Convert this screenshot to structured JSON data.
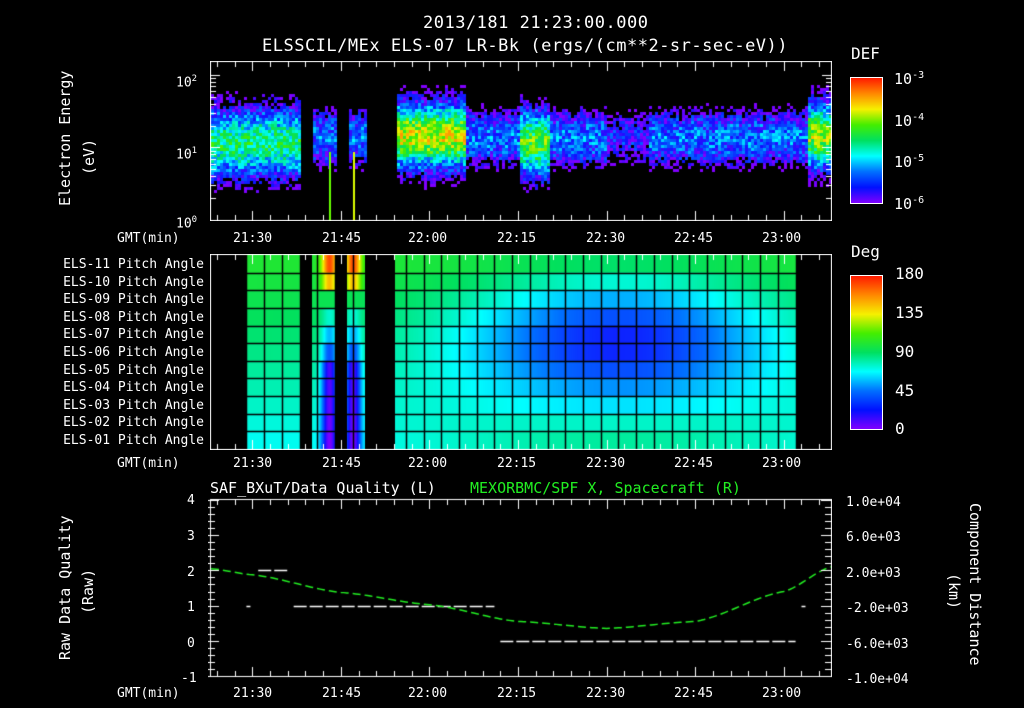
{
  "header": {
    "timestamp": "2013/181 21:23:00.000",
    "product": "ELSSCIL/MEx ELS-07 LR-Bk  (ergs/(cm**2-sr-sec-eV))"
  },
  "time_axis": {
    "label": "GMT(min)",
    "ticks": [
      "21:30",
      "21:45",
      "22:00",
      "22:15",
      "22:30",
      "22:45",
      "23:00"
    ]
  },
  "panel1": {
    "ylabel_line1": "Electron Energy",
    "ylabel_line2": "(eV)",
    "yticks": [
      {
        "base": "10",
        "exp": "2"
      },
      {
        "base": "10",
        "exp": "1"
      },
      {
        "base": "10",
        "exp": "0"
      }
    ],
    "colorbar": {
      "title": "DEF",
      "ticks": [
        {
          "base": "10",
          "exp": "-3"
        },
        {
          "base": "10",
          "exp": "-4"
        },
        {
          "base": "10",
          "exp": "-5"
        },
        {
          "base": "10",
          "exp": "-6"
        }
      ]
    }
  },
  "panel2": {
    "rows": [
      "ELS-11 Pitch Angle",
      "ELS-10 Pitch Angle",
      "ELS-09 Pitch Angle",
      "ELS-08 Pitch Angle",
      "ELS-07 Pitch Angle",
      "ELS-06 Pitch Angle",
      "ELS-05 Pitch Angle",
      "ELS-04 Pitch Angle",
      "ELS-03 Pitch Angle",
      "ELS-02 Pitch Angle",
      "ELS-01 Pitch Angle"
    ],
    "colorbar": {
      "title": "Deg",
      "ticks": [
        "180",
        "135",
        "90",
        "45",
        "0"
      ]
    }
  },
  "panel3": {
    "left_title": "SAF_BXuT/Data Quality (L)",
    "right_title": "MEXORBMC/SPF X, Spacecraft (R)",
    "ylabel_left_line1": "Raw Data Quality",
    "ylabel_left_line2": "(Raw)",
    "ylabel_right_line1": "Component Distance",
    "ylabel_right_line2": "(km)",
    "yticks_left": [
      "4",
      "3",
      "2",
      "1",
      "0",
      "-1"
    ],
    "yticks_right": [
      "1.0e+04",
      "6.0e+03",
      "2.0e+03",
      "-2.0e+03",
      "-6.0e+03",
      "-1.0e+04"
    ]
  },
  "colors": {
    "background": "#000000",
    "axes": "#ffffff",
    "spacecraft_trace": "#22ee22",
    "quality_trace": "#ffffff"
  },
  "chart_data": [
    {
      "type": "heatmap",
      "title": "ELSSCIL/MEx ELS-07 LR-Bk (ergs/(cm**2-sr-sec-eV))",
      "xlabel": "GMT(min)",
      "ylabel": "Electron Energy (eV)",
      "yscale": "log",
      "ylim": [
        1,
        150
      ],
      "xlim": [
        "21:23",
        "23:08"
      ],
      "colorbar": {
        "label": "DEF",
        "scale": "log",
        "range": [
          1e-06,
          0.001
        ]
      },
      "data_gaps": [
        [
          "21:38",
          "21:40"
        ],
        [
          "21:44",
          "21:46"
        ],
        [
          "21:49",
          "21:54"
        ]
      ],
      "features": [
        {
          "time_range": [
            "21:23",
            "21:38"
          ],
          "peak_energy_eV": 12,
          "peak_def": 3e-05
        },
        {
          "time_range": [
            "21:55",
            "22:05"
          ],
          "peak_energy_eV": 15,
          "peak_def": 0.00015
        },
        {
          "time_range": [
            "22:16",
            "22:19"
          ],
          "peak_energy_eV": 12,
          "peak_def": 6e-05
        },
        {
          "time_range": [
            "23:05",
            "23:08"
          ],
          "peak_energy_eV": 15,
          "peak_def": 0.0001
        }
      ]
    },
    {
      "type": "heatmap",
      "title": "ELS pitch angles",
      "xlabel": "GMT(min)",
      "categories": [
        "ELS-11",
        "ELS-10",
        "ELS-09",
        "ELS-08",
        "ELS-07",
        "ELS-06",
        "ELS-05",
        "ELS-04",
        "ELS-03",
        "ELS-02",
        "ELS-01"
      ],
      "colorbar": {
        "label": "Deg",
        "range": [
          0,
          180
        ],
        "ticks": [
          0,
          45,
          90,
          135,
          180
        ]
      },
      "data_range": [
        "21:29",
        "23:02"
      ],
      "data_gaps": [
        [
          "21:23",
          "21:29"
        ],
        [
          "21:38",
          "21:40"
        ],
        [
          "21:44",
          "21:46"
        ],
        [
          "21:49",
          "21:54"
        ],
        [
          "23:02",
          "23:08"
        ]
      ],
      "description": "Pitch angle ~100 deg at start; minimum ~35 deg around 22:32 in ELS-07; ELS-01 ~110 deg near 22:30; spikes near 170 deg for ELS-11 around 21:43 and 21:47"
    },
    {
      "type": "line",
      "title": "SAF_BXuT/Data Quality (L) ; MEXORBMC/SPF X, Spacecraft (R)",
      "xlabel": "GMT(min)",
      "ylabel": "Raw Data Quality (Raw)",
      "ylabel_right": "Component Distance (km)",
      "ylim": [
        -1,
        4
      ],
      "ylim_right": [
        -10000,
        10000
      ],
      "series": [
        {
          "name": "Data Quality (L)",
          "axis": "left",
          "points": [
            {
              "t": "21:29",
              "v": 1
            },
            {
              "t": "21:31",
              "v": 2
            },
            {
              "t": "21:36",
              "v": 2
            },
            {
              "t": "21:37",
              "v": 1
            },
            {
              "t": "22:11",
              "v": 1
            },
            {
              "t": "22:12",
              "v": 0
            },
            {
              "t": "23:02",
              "v": 0
            },
            {
              "t": "23:03",
              "v": 1
            }
          ]
        },
        {
          "name": "SPF X, Spacecraft (R)",
          "axis": "right",
          "points": [
            {
              "t": "21:23",
              "v": 2200
            },
            {
              "t": "21:30",
              "v": 1500
            },
            {
              "t": "21:45",
              "v": -500
            },
            {
              "t": "22:00",
              "v": -1900
            },
            {
              "t": "22:15",
              "v": -3800
            },
            {
              "t": "22:30",
              "v": -4600
            },
            {
              "t": "22:45",
              "v": -3800
            },
            {
              "t": "23:00",
              "v": -400
            },
            {
              "t": "23:08",
              "v": 2400
            }
          ]
        }
      ]
    }
  ]
}
